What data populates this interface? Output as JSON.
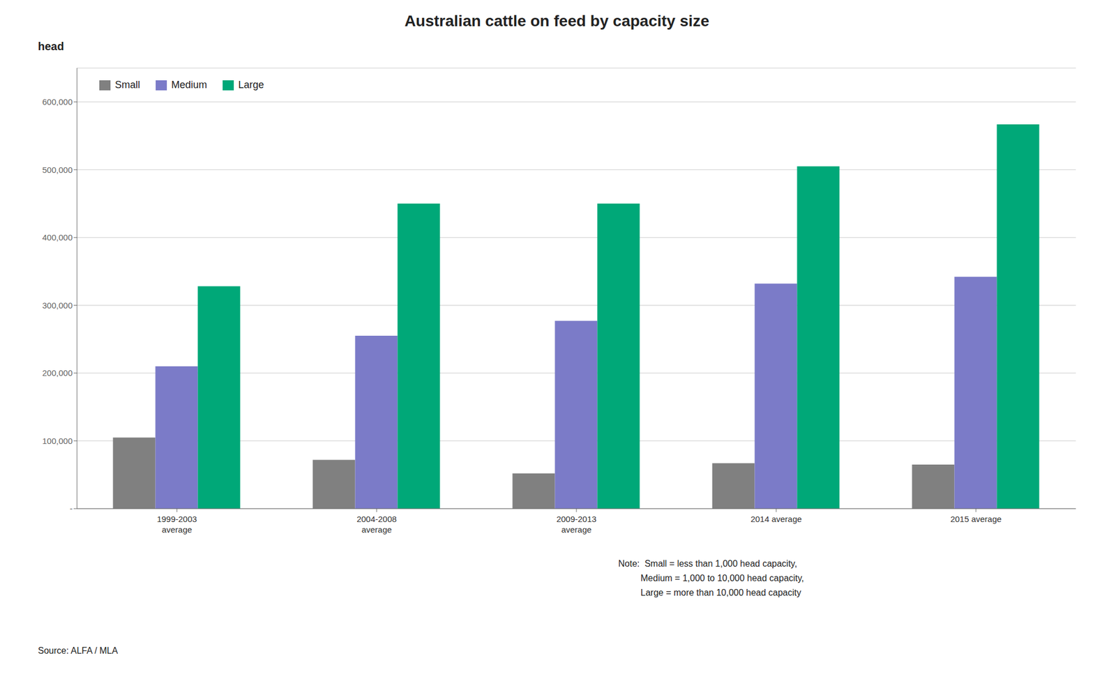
{
  "chart_data": {
    "type": "bar",
    "title": "Australian cattle on feed by capacity size",
    "ylabel": "head",
    "categories": [
      "1999-2003\naverage",
      "2004-2008\naverage",
      "2009-2013\naverage",
      "2014 average",
      "2015 average"
    ],
    "series": [
      {
        "name": "Small",
        "color": "#808080",
        "values": [
          105000,
          72000,
          52000,
          67000,
          65000
        ]
      },
      {
        "name": "Medium",
        "color": "#7B7BC8",
        "values": [
          210000,
          255000,
          277000,
          332000,
          342000
        ]
      },
      {
        "name": "Large",
        "color": "#00A878",
        "values": [
          328000,
          450000,
          450000,
          505000,
          567000
        ]
      }
    ],
    "ylim": [
      0,
      650000
    ],
    "yticks": [
      {
        "value": 0,
        "label": "-"
      },
      {
        "value": 100000,
        "label": "100,000"
      },
      {
        "value": 200000,
        "label": "200,000"
      },
      {
        "value": 300000,
        "label": "300,000"
      },
      {
        "value": 400000,
        "label": "400,000"
      },
      {
        "value": 500000,
        "label": "500,000"
      },
      {
        "value": 600000,
        "label": "600,000"
      }
    ],
    "grid": true,
    "legend": "upper left",
    "annotations": [
      "Source: ALFA / MLA",
      "Note:  Small = less than 1,000 head capacity,",
      "         Medium = 1,000 to 10,000 head capacity,",
      "         Large = more than 10,000 head capacity"
    ]
  }
}
